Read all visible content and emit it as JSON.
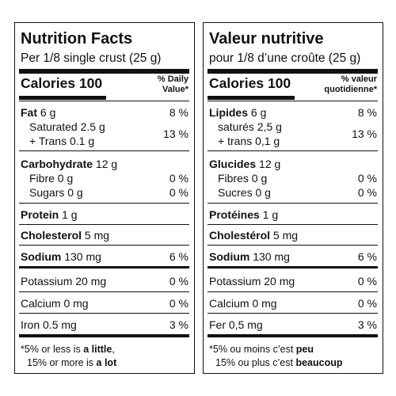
{
  "panels": [
    {
      "title": "Nutrition Facts",
      "serving": "Per 1/8 single crust (25 g)",
      "calories": {
        "label": "Calories",
        "value": "100"
      },
      "dv_header": [
        "% Daily",
        "Value*"
      ],
      "fat": {
        "name": "Fat",
        "amount": "6 g",
        "dv": "8 %"
      },
      "saturated_trans": {
        "lines": [
          "Saturated 2.5 g",
          "+ Trans 0.1 g"
        ],
        "dv": "13 %"
      },
      "carbohydrate": {
        "name": "Carbohydrate",
        "amount": "12 g"
      },
      "fibre": {
        "label": "Fibre 0 g",
        "dv": "0 %"
      },
      "sugars": {
        "label": "Sugars 0 g",
        "dv": "0 %"
      },
      "protein": {
        "name": "Protein",
        "amount": "1 g"
      },
      "cholesterol": {
        "name": "Cholesterol",
        "amount": "5 mg"
      },
      "sodium": {
        "name": "Sodium",
        "amount": "130 mg",
        "dv": "6 %"
      },
      "potassium": {
        "label": "Potassium 20 mg",
        "dv": "0 %"
      },
      "calcium": {
        "label": "Calcium 0 mg",
        "dv": "0 %"
      },
      "iron": {
        "label": "Iron 0.5 mg",
        "dv": "3 %"
      },
      "footnote": [
        [
          {
            "text": "*5% or less is "
          },
          {
            "text": "a little",
            "bold": true
          },
          {
            "text": ","
          }
        ],
        [
          {
            "text": "15% or more is "
          },
          {
            "text": "a lot",
            "bold": true
          }
        ]
      ]
    },
    {
      "title": "Valeur nutritive",
      "serving": "pour 1/8 d’une croûte (25 g)",
      "calories": {
        "label": "Calories",
        "value": "100"
      },
      "dv_header": [
        "% valeur",
        "quotidienne*"
      ],
      "fat": {
        "name": "Lipides",
        "amount": "6 g",
        "dv": "8 %"
      },
      "saturated_trans": {
        "lines": [
          "saturés 2,5 g",
          "+ trans 0,1 g"
        ],
        "dv": "13 %"
      },
      "carbohydrate": {
        "name": "Glucides",
        "amount": "12 g"
      },
      "fibre": {
        "label": "Fibres 0 g",
        "dv": "0 %"
      },
      "sugars": {
        "label": "Sucres 0 g",
        "dv": "0 %"
      },
      "protein": {
        "name": "Protéines",
        "amount": "1 g"
      },
      "cholesterol": {
        "name": "Cholestérol",
        "amount": "5 mg"
      },
      "sodium": {
        "name": "Sodium",
        "amount": "130 mg",
        "dv": "6 %"
      },
      "potassium": {
        "label": "Potassium 20 mg",
        "dv": "0 %"
      },
      "calcium": {
        "label": "Calcium 0 mg",
        "dv": "0 %"
      },
      "iron": {
        "label": "Fer 0,5 mg",
        "dv": "3 %"
      },
      "footnote": [
        [
          {
            "text": "*5% ou moins c’est "
          },
          {
            "text": "peu",
            "bold": true
          }
        ],
        [
          {
            "text": "15% ou plus c’est "
          },
          {
            "text": "beaucoup",
            "bold": true
          }
        ]
      ]
    }
  ]
}
